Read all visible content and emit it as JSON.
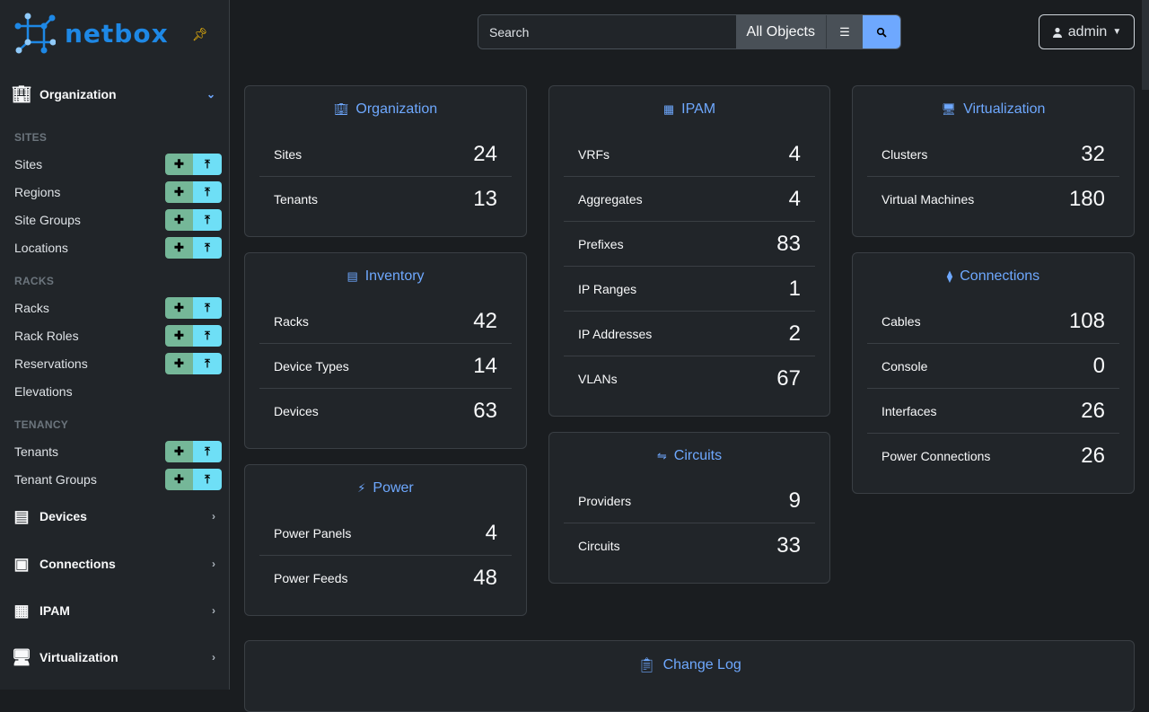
{
  "brand": {
    "name": "netbox",
    "accent": "#1e88e5"
  },
  "sidebar": {
    "groups": [
      {
        "label": "Organization",
        "icon": "building-icon",
        "expanded": true
      },
      {
        "label": "Devices",
        "icon": "server-icon",
        "expanded": false
      },
      {
        "label": "Connections",
        "icon": "ethernet-icon",
        "expanded": false
      },
      {
        "label": "IPAM",
        "icon": "counter-icon",
        "expanded": false
      },
      {
        "label": "Virtualization",
        "icon": "monitor-icon",
        "expanded": false
      }
    ],
    "sections": [
      "SITES",
      "RACKS",
      "TENANCY"
    ],
    "items": [
      {
        "label": "Sites",
        "buttons": true
      },
      {
        "label": "Regions",
        "buttons": true
      },
      {
        "label": "Site Groups",
        "buttons": true
      },
      {
        "label": "Locations",
        "buttons": true
      },
      {
        "label": "Racks",
        "buttons": true
      },
      {
        "label": "Rack Roles",
        "buttons": true
      },
      {
        "label": "Reservations",
        "buttons": true
      },
      {
        "label": "Elevations",
        "buttons": false
      },
      {
        "label": "Tenants",
        "buttons": true
      },
      {
        "label": "Tenant Groups",
        "buttons": true
      }
    ]
  },
  "search": {
    "placeholder": "Search",
    "scope": "All Objects"
  },
  "user": {
    "name": "admin"
  },
  "cards": [
    [
      {
        "title": "Organization",
        "icon": "building-icon",
        "rows": [
          [
            "Sites",
            "24"
          ],
          [
            "Tenants",
            "13"
          ]
        ]
      },
      {
        "title": "Inventory",
        "icon": "server-icon",
        "rows": [
          [
            "Racks",
            "42"
          ],
          [
            "Device Types",
            "14"
          ],
          [
            "Devices",
            "63"
          ]
        ]
      },
      {
        "title": "Power",
        "icon": "flash-icon",
        "rows": [
          [
            "Power Panels",
            "4"
          ],
          [
            "Power Feeds",
            "48"
          ]
        ]
      }
    ],
    [
      {
        "title": "IPAM",
        "icon": "counter-icon",
        "rows": [
          [
            "VRFs",
            "4"
          ],
          [
            "Aggregates",
            "4"
          ],
          [
            "Prefixes",
            "83"
          ],
          [
            "IP Ranges",
            "1"
          ],
          [
            "IP Addresses",
            "2"
          ],
          [
            "VLANs",
            "67"
          ]
        ]
      },
      {
        "title": "Circuits",
        "icon": "transit-icon",
        "rows": [
          [
            "Providers",
            "9"
          ],
          [
            "Circuits",
            "33"
          ]
        ]
      }
    ],
    [
      {
        "title": "Virtualization",
        "icon": "monitor-icon",
        "rows": [
          [
            "Clusters",
            "32"
          ],
          [
            "Virtual Machines",
            "180"
          ]
        ]
      },
      {
        "title": "Connections",
        "icon": "cable-icon",
        "rows": [
          [
            "Cables",
            "108"
          ],
          [
            "Console",
            "0"
          ],
          [
            "Interfaces",
            "26"
          ],
          [
            "Power Connections",
            "26"
          ]
        ]
      }
    ]
  ],
  "changelog": {
    "title": "Change Log",
    "icon": "clipboard-clock-icon"
  }
}
